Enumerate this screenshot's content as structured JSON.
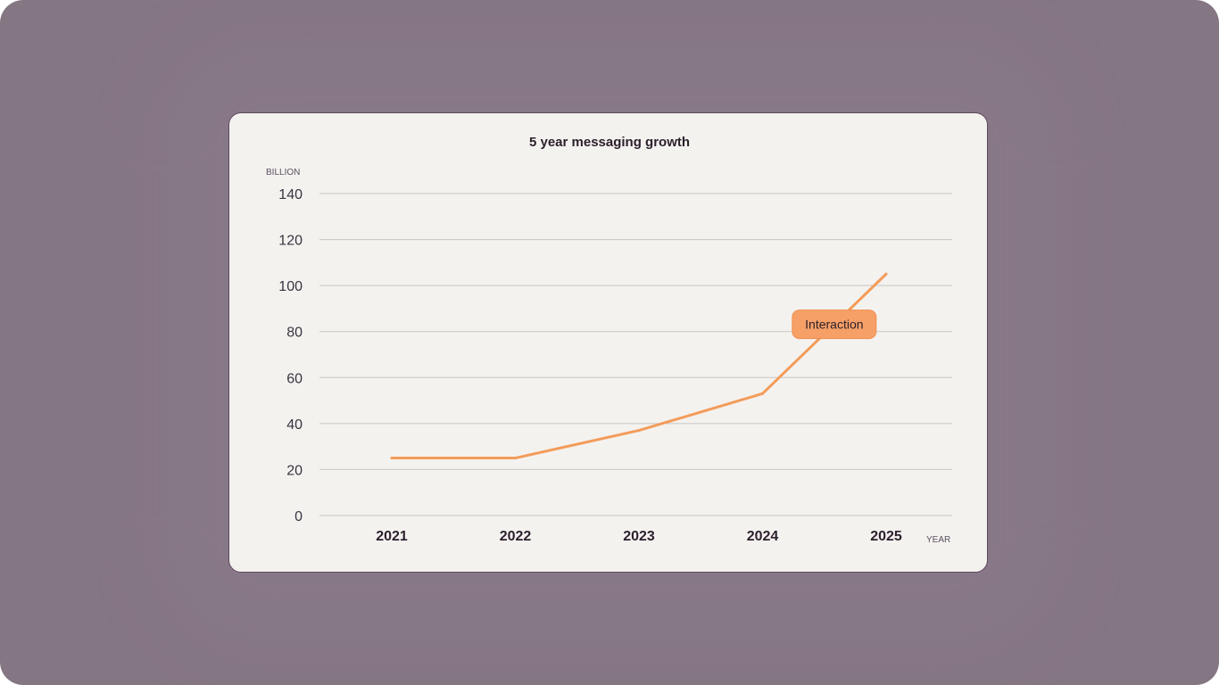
{
  "colors": {
    "background": "#857683",
    "card": "#f4f2ef",
    "line": "#f39c5a",
    "tooltip": "#f6a067"
  },
  "chart_data": {
    "type": "line",
    "title": "5 year messaging growth",
    "ylabel": "BILLION",
    "xlabel": "YEAR",
    "categories": [
      "2021",
      "2022",
      "2023",
      "2024",
      "2025"
    ],
    "series": [
      {
        "values": [
          25,
          25,
          37,
          53,
          105
        ]
      }
    ],
    "ylim": [
      0,
      140
    ],
    "yticks": [
      "0",
      "20",
      "40",
      "60",
      "80",
      "100",
      "120",
      "140"
    ],
    "grid": true,
    "legend": "none",
    "annotation": {
      "label": "Interaction"
    }
  }
}
